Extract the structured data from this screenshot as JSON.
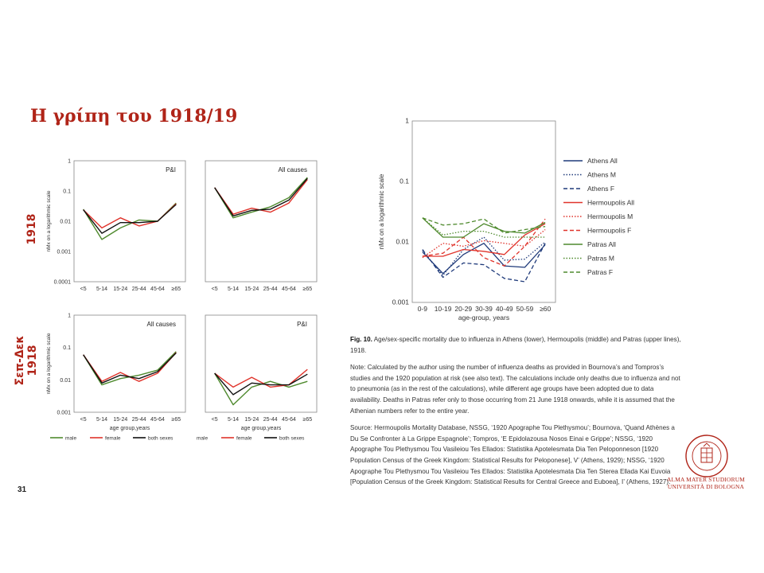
{
  "slide": {
    "title": "Η γρίπη του 1918/19",
    "side_label_top": "1918",
    "side_label_bottom_line1": "Σεπ-Δεκ",
    "side_label_bottom_line2": "1918",
    "page_number": "31"
  },
  "logo": {
    "line1": "ALMA MATER STUDIORUM",
    "line2": "UNIVERSITÀ DI BOLOGNA",
    "seal_text": "ALMA MATER STUDIORUM · A.D. 1088"
  },
  "colors": {
    "male": "#4f8a2e",
    "female": "#e0332b",
    "both": "#111111",
    "athens": "#1f3a7a",
    "hermoupolis": "#e0332b",
    "patras": "#4f8a2e",
    "accent": "#b02418"
  },
  "figure": {
    "caption_label": "Fig. 10.",
    "caption_text": "Age/sex-specific mortality due to influenza in Athens (lower), Hermoupolis (middle) and Patras (upper lines), 1918.",
    "note": "Note: Calculated by the author using the number of influenza deaths as provided in Bournova’s and Tompros’s studies and the 1920 population at risk (see also text). The calculations include only deaths due to influenza and not to pneumonia (as in the rest of the calculations), while different age groups have been adopted due to data availability. Deaths in Patras refer only to those occurring from 21 June 1918 onwards, while it is assumed that the Athenian numbers refer to the entire year.",
    "source": "Source: Hermoupolis Mortality Database, NSSG, ‘1920 Apographe Tou Plethysmou’; Bournova, ‘Quand Athènes a Du Se Confronter à La Grippe Espagnole’; Tompros, ‘E Epidolazousa Nosos Einai e Grippe’; NSSG, ‘1920 Apographe Tou Plethysmou Tou Vasileiou Tes Ellados: Statistika Apotelesmata Dia Ten Peloponneson [1920 Population Census of the Greek Kingdom: Statistical Results for Peloponese], V’ (Athens, 1929); NSSG, ‘1920 Apographe Tou Plethysmou Tou Vasileiou Tes Ellados: Statistika Apotelesmata Dia Ten Sterea Ellada Kai Euvoia [Population Census of the Greek Kingdom: Statistical Results for Central Greece and Euboea], I’ (Athens, 1927)."
  },
  "chart_data": [
    {
      "type": "line",
      "title": "P&I",
      "ylabel": "nMx on a logarithmic scale",
      "xlabel": "",
      "log_scale": true,
      "ylim": [
        0.0001,
        1
      ],
      "yticks": [
        "1",
        "0.1",
        "0.01",
        "0.001",
        "0.0001"
      ],
      "categories": [
        "<5",
        "5-14",
        "15-24",
        "25-44",
        "45-64",
        "≥65"
      ],
      "series": [
        {
          "color": "#4f8a2e",
          "values": [
            0.025,
            0.0025,
            0.006,
            0.011,
            0.01,
            0.04
          ]
        },
        {
          "color": "#e0332b",
          "values": [
            0.024,
            0.006,
            0.013,
            0.007,
            0.01,
            0.038
          ]
        },
        {
          "color": "#111111",
          "values": [
            0.024,
            0.004,
            0.009,
            0.009,
            0.01,
            0.036
          ]
        }
      ]
    },
    {
      "type": "line",
      "title": "All causes",
      "xlabel": "",
      "log_scale": true,
      "ylim": [
        0.0001,
        1
      ],
      "categories": [
        "<5",
        "5-14",
        "15-24",
        "25-44",
        "45-64",
        "≥65"
      ],
      "series": [
        {
          "color": "#4f8a2e",
          "values": [
            0.13,
            0.013,
            0.02,
            0.03,
            0.06,
            0.28
          ]
        },
        {
          "color": "#e0332b",
          "values": [
            0.13,
            0.017,
            0.027,
            0.02,
            0.04,
            0.24
          ]
        },
        {
          "color": "#111111",
          "values": [
            0.13,
            0.015,
            0.023,
            0.025,
            0.05,
            0.26
          ]
        }
      ]
    },
    {
      "type": "line",
      "title": "All causes",
      "ylabel": "nMx on a logarithmic scale",
      "xlabel": "age group,years",
      "log_scale": true,
      "ylim": [
        0.001,
        1
      ],
      "yticks": [
        "1",
        "0.1",
        "0.01",
        "0.001"
      ],
      "categories": [
        "<5",
        "5-14",
        "15-24",
        "25-44",
        "45-64",
        "≥65"
      ],
      "series": [
        {
          "color": "#4f8a2e",
          "values": [
            0.06,
            0.007,
            0.011,
            0.014,
            0.02,
            0.075
          ]
        },
        {
          "color": "#e0332b",
          "values": [
            0.06,
            0.009,
            0.017,
            0.009,
            0.016,
            0.07
          ]
        },
        {
          "color": "#111111",
          "values": [
            0.06,
            0.008,
            0.014,
            0.011,
            0.018,
            0.068
          ]
        }
      ],
      "legend": [
        "male",
        "female",
        "both sexes"
      ]
    },
    {
      "type": "line",
      "title": "P&I",
      "xlabel": "age group,years",
      "log_scale": true,
      "ylim": [
        0.001,
        1
      ],
      "categories": [
        "<5",
        "5-14",
        "15-24",
        "25-44",
        "45-64",
        "≥65"
      ],
      "series": [
        {
          "color": "#4f8a2e",
          "values": [
            0.016,
            0.0017,
            0.006,
            0.009,
            0.006,
            0.009
          ]
        },
        {
          "color": "#e0332b",
          "values": [
            0.016,
            0.006,
            0.012,
            0.006,
            0.007,
            0.021
          ]
        },
        {
          "color": "#111111",
          "values": [
            0.016,
            0.0035,
            0.008,
            0.007,
            0.007,
            0.015
          ]
        }
      ],
      "legend": [
        "male",
        "female",
        "both sexes"
      ]
    },
    {
      "type": "line",
      "ylabel": "nMx on a logarithmic scale",
      "xlabel": "age-group, years",
      "log_scale": true,
      "ylim": [
        0.001,
        1
      ],
      "yticks": [
        "1",
        "0.1",
        "0.01",
        "0.001"
      ],
      "categories": [
        "0-9",
        "10-19",
        "20-29",
        "30-39",
        "40-49",
        "50-59",
        "≥60"
      ],
      "legend_position": "right",
      "series": [
        {
          "name": "Athens All",
          "color": "#1f3a7a",
          "dash": "solid",
          "values": [
            0.0068,
            0.003,
            0.0062,
            0.0095,
            0.004,
            0.0038,
            0.009
          ]
        },
        {
          "name": "Athens M",
          "color": "#1f3a7a",
          "dash": "dotted",
          "values": [
            0.0072,
            0.0028,
            0.0075,
            0.012,
            0.005,
            0.0052,
            0.01
          ]
        },
        {
          "name": "Athens F",
          "color": "#1f3a7a",
          "dash": "dashed",
          "values": [
            0.0075,
            0.0026,
            0.0045,
            0.0042,
            0.0025,
            0.0022,
            0.0095
          ]
        },
        {
          "name": "Hermoupolis All",
          "color": "#e0332b",
          "dash": "solid",
          "values": [
            0.0058,
            0.0058,
            0.0075,
            0.007,
            0.0062,
            0.013,
            0.02
          ]
        },
        {
          "name": "Hermoupolis M",
          "color": "#e0332b",
          "dash": "dotted",
          "values": [
            0.0055,
            0.0095,
            0.0085,
            0.0105,
            0.0095,
            0.0085,
            0.016
          ]
        },
        {
          "name": "Hermoupolis F",
          "color": "#e0332b",
          "dash": "dashed",
          "values": [
            0.0058,
            0.0065,
            0.012,
            0.0055,
            0.004,
            0.0085,
            0.024
          ]
        },
        {
          "name": "Patras All",
          "color": "#4f8a2e",
          "dash": "solid",
          "values": [
            0.025,
            0.012,
            0.012,
            0.02,
            0.015,
            0.014,
            0.021
          ]
        },
        {
          "name": "Patras M",
          "color": "#4f8a2e",
          "dash": "dotted",
          "values": [
            0.025,
            0.013,
            0.015,
            0.015,
            0.012,
            0.012,
            0.012
          ]
        },
        {
          "name": "Patras F",
          "color": "#4f8a2e",
          "dash": "dashed",
          "values": [
            0.025,
            0.019,
            0.02,
            0.024,
            0.014,
            0.016,
            0.018
          ]
        }
      ]
    }
  ]
}
